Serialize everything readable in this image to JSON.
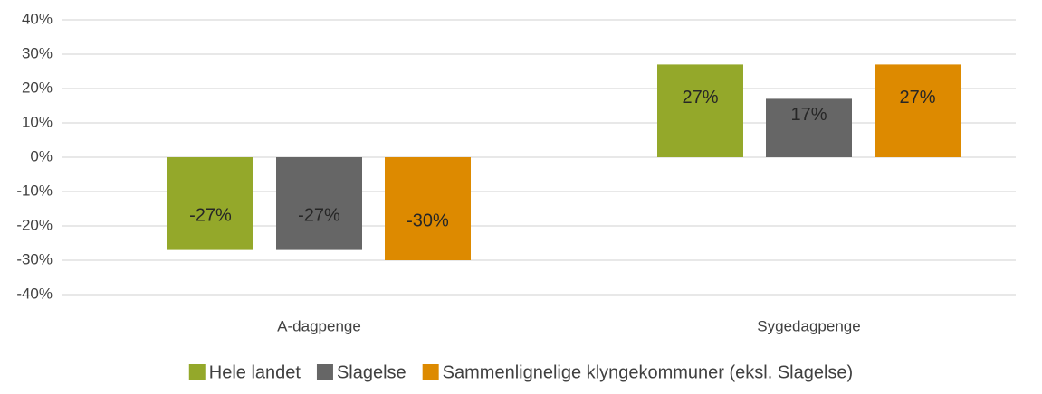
{
  "chart_data": {
    "type": "bar",
    "categories": [
      "A-dagpenge",
      "Sygedagpenge"
    ],
    "series": [
      {
        "name": "Hele landet",
        "color": "#94a82a",
        "values": [
          -27,
          27
        ],
        "value_labels": [
          "-27%",
          "27%"
        ]
      },
      {
        "name": "Slagelse",
        "color": "#666666",
        "values": [
          -27,
          17
        ],
        "value_labels": [
          "-27%",
          "17%"
        ]
      },
      {
        "name": "Sammenlignelige klyngekommuner (eksl. Slagelse)",
        "color": "#dd8a00",
        "values": [
          -30,
          27
        ],
        "value_labels": [
          "-30%",
          "27%"
        ]
      }
    ],
    "ylim": [
      -40,
      40
    ],
    "yticks": [
      {
        "value": -40,
        "label": "-40%"
      },
      {
        "value": -30,
        "label": "-30%"
      },
      {
        "value": -20,
        "label": "-20%"
      },
      {
        "value": -10,
        "label": "-10%"
      },
      {
        "value": 0,
        "label": "0%"
      },
      {
        "value": 10,
        "label": "10%"
      },
      {
        "value": 20,
        "label": "20%"
      },
      {
        "value": 30,
        "label": "30%"
      },
      {
        "value": 40,
        "label": "40%"
      }
    ],
    "grid": true,
    "legend": "bottom"
  }
}
